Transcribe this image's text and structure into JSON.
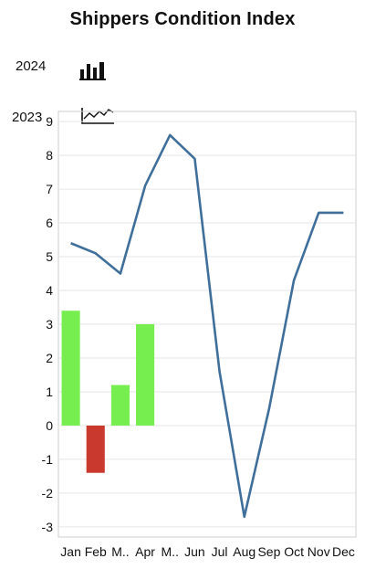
{
  "title": "Shippers Condition Index",
  "legend": [
    {
      "label": "2024",
      "icon": "bar-chart-icon"
    },
    {
      "label": "2023",
      "icon": "line-chart-icon"
    }
  ],
  "colors": {
    "positive_bar": "#77ee4f",
    "negative_bar": "#c9392d",
    "line": "#3f6f9a",
    "grid": "#e6e6e6",
    "axis": "#cfcfcf"
  },
  "chart_data": {
    "type": "bar",
    "categories": [
      "Jan",
      "Feb",
      "M..",
      "Apr",
      "M..",
      "Jun",
      "Jul",
      "Aug",
      "Sep",
      "Oct",
      "Nov",
      "Dec"
    ],
    "ylim": [
      -3.3,
      9.3
    ],
    "yticks": [
      -3,
      -2,
      -1,
      0,
      1,
      2,
      3,
      4,
      5,
      6,
      7,
      8,
      9
    ],
    "series": [
      {
        "name": "2024",
        "type": "bar",
        "values": [
          3.4,
          -1.4,
          1.2,
          3.0,
          null,
          null,
          null,
          null,
          null,
          null,
          null,
          null
        ]
      },
      {
        "name": "2023",
        "type": "line",
        "values": [
          5.4,
          5.1,
          4.5,
          7.1,
          8.6,
          7.9,
          1.6,
          -2.7,
          0.5,
          4.3,
          6.3,
          6.3
        ]
      }
    ]
  }
}
